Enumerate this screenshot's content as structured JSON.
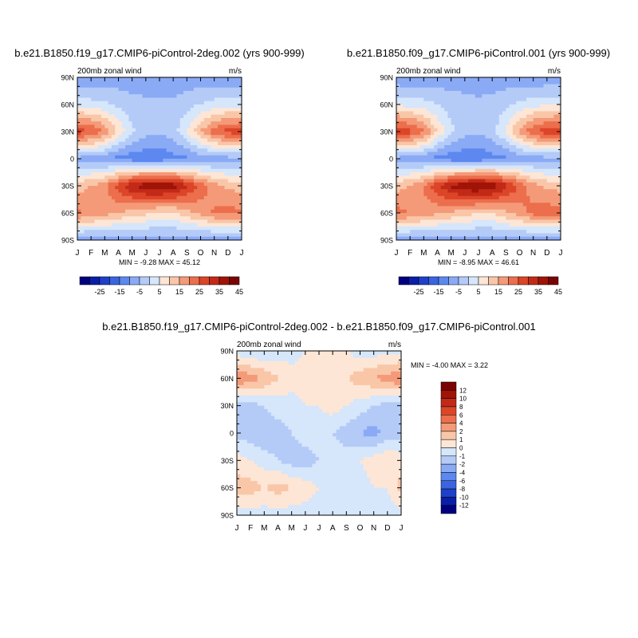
{
  "panels": [
    {
      "title": "b.e21.B1850.f19_g17.CMIP6-piControl-2deg.002 (yrs 900-999)",
      "left_label": "200mb zonal wind",
      "right_label": "m/s",
      "stats_text": "MIN =  -9.28 MAX =  45.12"
    },
    {
      "title": "b.e21.B1850.f09_g17.CMIP6-piControl.001 (yrs 900-999)",
      "left_label": "200mb zonal wind",
      "right_label": "m/s",
      "stats_text": "MIN =  -8.95 MAX =  46.61"
    },
    {
      "title": "b.e21.B1850.f19_g17.CMIP6-piControl-2deg.002 - b.e21.B1850.f09_g17.CMIP6-piControl.001",
      "left_label": "200mb zonal wind",
      "right_label": "m/s",
      "stats_text": "MIN =  -4.00 MAX =   3.22"
    }
  ],
  "chart_data": [
    {
      "type": "heatmap",
      "title": "b.e21.B1850.f19_g17.CMIP6-piControl-2deg.002 (yrs 900-999)",
      "variable": "200mb zonal wind",
      "units": "m/s",
      "x": [
        "J",
        "F",
        "M",
        "A",
        "M",
        "J",
        "J",
        "A",
        "S",
        "O",
        "N",
        "D",
        "J"
      ],
      "y": [
        90,
        60,
        30,
        0,
        -30,
        -60,
        -90
      ],
      "x_tick_labels": [
        "J",
        "F",
        "M",
        "A",
        "M",
        "J",
        "J",
        "A",
        "S",
        "O",
        "N",
        "D",
        "J"
      ],
      "y_tick_labels": [
        "90N",
        "60N",
        "30N",
        "0",
        "30S",
        "60S",
        "90S"
      ],
      "min": -9.28,
      "max": 45.12,
      "z": [
        [
          -4,
          -4,
          -4,
          -3,
          -3,
          -3,
          -3,
          -3,
          -3,
          -3,
          -4,
          -4,
          -4
        ],
        [
          8,
          7,
          6,
          4,
          2,
          1,
          1,
          1,
          3,
          5,
          7,
          8,
          8
        ],
        [
          33,
          30,
          24,
          14,
          6,
          2,
          1,
          3,
          10,
          20,
          28,
          32,
          33
        ],
        [
          -2,
          -3,
          -4,
          -7,
          -8,
          -9,
          -9,
          -7,
          -6,
          -4,
          -3,
          -2,
          -2
        ],
        [
          18,
          20,
          24,
          33,
          40,
          44,
          45,
          43,
          36,
          28,
          22,
          19,
          18
        ],
        [
          26,
          24,
          22,
          20,
          18,
          16,
          14,
          14,
          18,
          22,
          26,
          27,
          26
        ],
        [
          -4,
          -4,
          -4,
          -4,
          -3,
          -3,
          -3,
          -3,
          -3,
          -4,
          -4,
          -4,
          -4
        ]
      ],
      "levels": [
        -25,
        -20,
        -15,
        -10,
        -5,
        0,
        5,
        10,
        15,
        20,
        25,
        30,
        35,
        40,
        45
      ],
      "colorbar_labels": [
        "-25",
        "-15",
        "-5",
        "5",
        "15",
        "25",
        "35",
        "45"
      ],
      "colors": [
        "#000080",
        "#0a1fa8",
        "#1f40c8",
        "#3a64e0",
        "#5c88f0",
        "#8aaaf6",
        "#b4cbf8",
        "#d6e6fb",
        "#fde6d6",
        "#f9c6a8",
        "#f49a78",
        "#ec6e4c",
        "#dc4528",
        "#c22a18",
        "#a01408",
        "#7a0404"
      ]
    },
    {
      "type": "heatmap",
      "title": "b.e21.B1850.f09_g17.CMIP6-piControl.001 (yrs 900-999)",
      "variable": "200mb zonal wind",
      "units": "m/s",
      "x": [
        "J",
        "F",
        "M",
        "A",
        "M",
        "J",
        "J",
        "A",
        "S",
        "O",
        "N",
        "D",
        "J"
      ],
      "y": [
        90,
        60,
        30,
        0,
        -30,
        -60,
        -90
      ],
      "x_tick_labels": [
        "J",
        "F",
        "M",
        "A",
        "M",
        "J",
        "J",
        "A",
        "S",
        "O",
        "N",
        "D",
        "J"
      ],
      "y_tick_labels": [
        "90N",
        "60N",
        "30N",
        "0",
        "30S",
        "60S",
        "90S"
      ],
      "min": -8.95,
      "max": 46.61,
      "z": [
        [
          -4,
          -4,
          -4,
          -3,
          -3,
          -3,
          -3,
          -3,
          -3,
          -3,
          -4,
          -4,
          -4
        ],
        [
          9,
          8,
          7,
          5,
          3,
          2,
          1,
          2,
          4,
          6,
          8,
          9,
          9
        ],
        [
          35,
          32,
          26,
          15,
          6,
          2,
          1,
          3,
          11,
          21,
          30,
          33,
          35
        ],
        [
          -2,
          -3,
          -4,
          -7,
          -8,
          -9,
          -9,
          -7,
          -6,
          -4,
          -3,
          -2,
          -2
        ],
        [
          18,
          20,
          25,
          34,
          41,
          45,
          46,
          44,
          37,
          29,
          22,
          19,
          18
        ],
        [
          27,
          25,
          23,
          21,
          19,
          17,
          15,
          15,
          19,
          23,
          27,
          28,
          27
        ],
        [
          -4,
          -4,
          -4,
          -4,
          -3,
          -3,
          -3,
          -3,
          -3,
          -4,
          -4,
          -4,
          -4
        ]
      ],
      "levels": [
        -25,
        -20,
        -15,
        -10,
        -5,
        0,
        5,
        10,
        15,
        20,
        25,
        30,
        35,
        40,
        45
      ],
      "colorbar_labels": [
        "-25",
        "-15",
        "-5",
        "5",
        "15",
        "25",
        "35",
        "45"
      ],
      "colors": [
        "#000080",
        "#0a1fa8",
        "#1f40c8",
        "#3a64e0",
        "#5c88f0",
        "#8aaaf6",
        "#b4cbf8",
        "#d6e6fb",
        "#fde6d6",
        "#f9c6a8",
        "#f49a78",
        "#ec6e4c",
        "#dc4528",
        "#c22a18",
        "#a01408",
        "#7a0404"
      ]
    },
    {
      "type": "heatmap",
      "title": "b.e21.B1850.f19_g17.CMIP6-piControl-2deg.002 - b.e21.B1850.f09_g17.CMIP6-piControl.001",
      "variable": "200mb zonal wind",
      "units": "m/s",
      "x": [
        "J",
        "F",
        "M",
        "A",
        "M",
        "J",
        "J",
        "A",
        "S",
        "O",
        "N",
        "D",
        "J"
      ],
      "y": [
        90,
        60,
        30,
        0,
        -30,
        -60,
        -90
      ],
      "x_tick_labels": [
        "J",
        "F",
        "M",
        "A",
        "M",
        "J",
        "J",
        "A",
        "S",
        "O",
        "N",
        "D",
        "J"
      ],
      "y_tick_labels": [
        "90N",
        "60N",
        "30N",
        "0",
        "30S",
        "60S",
        "90S"
      ],
      "min": -4.0,
      "max": 3.22,
      "z": [
        [
          -0.5,
          -1,
          -1,
          -0.5,
          -0.5,
          0,
          0.5,
          0.5,
          0,
          -0.5,
          -0.5,
          -0.5,
          -0.5
        ],
        [
          3,
          2.5,
          2,
          1,
          0.5,
          0.5,
          0.5,
          0.5,
          1,
          1.5,
          2,
          2.5,
          3
        ],
        [
          -1.5,
          -1.5,
          -1,
          -0.5,
          -0.5,
          0,
          0,
          0.5,
          0,
          -0.5,
          -1,
          -1.5,
          -1.5
        ],
        [
          -1.5,
          -1.5,
          -2,
          -1.5,
          -1,
          -0.5,
          -0.5,
          -1,
          -1.5,
          -2,
          -2.5,
          -1.5,
          -1.5
        ],
        [
          0.5,
          0,
          -0.5,
          -1,
          -1.5,
          -1.5,
          -1,
          -0.5,
          -0.5,
          0,
          0.5,
          1,
          0.5
        ],
        [
          1.5,
          1.5,
          1,
          1.5,
          1,
          0.5,
          0,
          0,
          0,
          -0.5,
          0,
          0,
          1.5
        ],
        [
          -0.5,
          -0.5,
          -0.5,
          -0.5,
          -0.5,
          -0.5,
          -0.5,
          -0.5,
          -0.5,
          -0.5,
          -0.5,
          -0.5,
          -0.5
        ]
      ],
      "levels": [
        -12,
        -10,
        -8,
        -6,
        -4,
        -2,
        -1,
        0,
        1,
        2,
        4,
        6,
        8,
        10,
        12
      ],
      "colorbar_labels": [
        "12",
        "10",
        "8",
        "6",
        "4",
        "2",
        "1",
        "0",
        "-1",
        "-2",
        "-4",
        "-6",
        "-8",
        "-10",
        "-12"
      ],
      "colors": [
        "#000080",
        "#0a1fa8",
        "#1f40c8",
        "#3a64e0",
        "#5c88f0",
        "#8aaaf6",
        "#b4cbf8",
        "#d6e6fb",
        "#fde6d6",
        "#f9c6a8",
        "#f49a78",
        "#ec6e4c",
        "#dc4528",
        "#c22a18",
        "#a01408",
        "#7a0404"
      ]
    }
  ]
}
